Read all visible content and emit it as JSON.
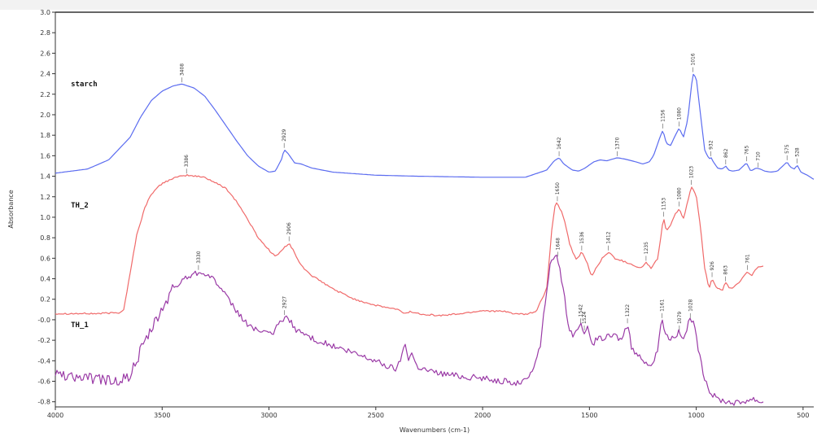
{
  "chart_data": {
    "type": "line",
    "xlabel": "Wavenumbers (cm-1)",
    "ylabel": "Absorbance",
    "xlim": [
      4000,
      450
    ],
    "ylim": [
      -0.85,
      3.0
    ],
    "x_reversed": true,
    "grid": false,
    "x_ticks": [
      4000,
      3500,
      3000,
      2500,
      2000,
      1500,
      1000,
      500
    ],
    "y_ticks": [
      -0.8,
      -0.6,
      -0.4,
      -0.2,
      0.0,
      0.2,
      0.4,
      0.6,
      0.8,
      1.0,
      1.2,
      1.4,
      1.6,
      1.8,
      2.0,
      2.2,
      2.4,
      2.6,
      2.8,
      3.0
    ],
    "x_tick_labels": [
      "4000",
      "3500",
      "3000",
      "2500",
      "2000",
      "1500",
      "1000",
      "500"
    ],
    "y_tick_labels": [
      "-0.8",
      "-0.6",
      "-0.4",
      "-0.2",
      "-0.0",
      "0.2",
      "0.4",
      "0.6",
      "0.8",
      "1.0",
      "1.2",
      "1.4",
      "1.6",
      "1.8",
      "2.0",
      "2.2",
      "2.4",
      "2.6",
      "2.8",
      "3.0"
    ],
    "series": [
      {
        "name": "starch",
        "color": "#5b6cf0",
        "noise": 0.0,
        "points": [
          [
            4000,
            1.43
          ],
          [
            3850,
            1.47
          ],
          [
            3750,
            1.56
          ],
          [
            3650,
            1.78
          ],
          [
            3600,
            1.98
          ],
          [
            3550,
            2.14
          ],
          [
            3500,
            2.23
          ],
          [
            3450,
            2.28
          ],
          [
            3408,
            2.3
          ],
          [
            3350,
            2.26
          ],
          [
            3300,
            2.18
          ],
          [
            3250,
            2.04
          ],
          [
            3200,
            1.89
          ],
          [
            3150,
            1.74
          ],
          [
            3100,
            1.6
          ],
          [
            3050,
            1.5
          ],
          [
            3000,
            1.44
          ],
          [
            2970,
            1.45
          ],
          [
            2940,
            1.57
          ],
          [
            2929,
            1.66
          ],
          [
            2910,
            1.62
          ],
          [
            2880,
            1.53
          ],
          [
            2850,
            1.52
          ],
          [
            2800,
            1.48
          ],
          [
            2700,
            1.44
          ],
          [
            2500,
            1.41
          ],
          [
            2300,
            1.4
          ],
          [
            2000,
            1.39
          ],
          [
            1800,
            1.39
          ],
          [
            1700,
            1.46
          ],
          [
            1665,
            1.55
          ],
          [
            1642,
            1.58
          ],
          [
            1620,
            1.52
          ],
          [
            1580,
            1.46
          ],
          [
            1550,
            1.45
          ],
          [
            1520,
            1.48
          ],
          [
            1480,
            1.54
          ],
          [
            1450,
            1.56
          ],
          [
            1420,
            1.55
          ],
          [
            1370,
            1.58
          ],
          [
            1340,
            1.57
          ],
          [
            1300,
            1.55
          ],
          [
            1250,
            1.52
          ],
          [
            1220,
            1.54
          ],
          [
            1200,
            1.6
          ],
          [
            1170,
            1.78
          ],
          [
            1156,
            1.85
          ],
          [
            1140,
            1.72
          ],
          [
            1120,
            1.7
          ],
          [
            1100,
            1.79
          ],
          [
            1080,
            1.87
          ],
          [
            1060,
            1.78
          ],
          [
            1040,
            1.95
          ],
          [
            1016,
            2.4
          ],
          [
            1000,
            2.36
          ],
          [
            980,
            2.0
          ],
          [
            960,
            1.65
          ],
          [
            940,
            1.57
          ],
          [
            930,
            1.58
          ],
          [
            920,
            1.54
          ],
          [
            900,
            1.48
          ],
          [
            880,
            1.47
          ],
          [
            860,
            1.5
          ],
          [
            850,
            1.46
          ],
          [
            830,
            1.45
          ],
          [
            800,
            1.46
          ],
          [
            780,
            1.5
          ],
          [
            765,
            1.53
          ],
          [
            745,
            1.45
          ],
          [
            720,
            1.48
          ],
          [
            700,
            1.47
          ],
          [
            680,
            1.45
          ],
          [
            650,
            1.44
          ],
          [
            620,
            1.45
          ],
          [
            600,
            1.49
          ],
          [
            575,
            1.54
          ],
          [
            560,
            1.49
          ],
          [
            540,
            1.47
          ],
          [
            528,
            1.51
          ],
          [
            510,
            1.44
          ],
          [
            480,
            1.41
          ],
          [
            450,
            1.37
          ]
        ]
      },
      {
        "name": "TH_2",
        "color": "#f06a6a",
        "noise": 0.008,
        "points": [
          [
            4000,
            0.06
          ],
          [
            3800,
            0.06
          ],
          [
            3700,
            0.07
          ],
          [
            3680,
            0.1
          ],
          [
            3650,
            0.45
          ],
          [
            3620,
            0.82
          ],
          [
            3580,
            1.1
          ],
          [
            3550,
            1.23
          ],
          [
            3500,
            1.33
          ],
          [
            3450,
            1.38
          ],
          [
            3386,
            1.41
          ],
          [
            3300,
            1.39
          ],
          [
            3200,
            1.28
          ],
          [
            3150,
            1.15
          ],
          [
            3100,
            0.98
          ],
          [
            3050,
            0.8
          ],
          [
            3000,
            0.68
          ],
          [
            2970,
            0.62
          ],
          [
            2950,
            0.65
          ],
          [
            2930,
            0.7
          ],
          [
            2906,
            0.75
          ],
          [
            2880,
            0.65
          ],
          [
            2850,
            0.53
          ],
          [
            2800,
            0.43
          ],
          [
            2700,
            0.3
          ],
          [
            2600,
            0.2
          ],
          [
            2500,
            0.14
          ],
          [
            2400,
            0.1
          ],
          [
            2360,
            0.06
          ],
          [
            2340,
            0.08
          ],
          [
            2300,
            0.06
          ],
          [
            2200,
            0.04
          ],
          [
            2100,
            0.06
          ],
          [
            2000,
            0.09
          ],
          [
            1900,
            0.08
          ],
          [
            1850,
            0.06
          ],
          [
            1800,
            0.05
          ],
          [
            1750,
            0.08
          ],
          [
            1700,
            0.3
          ],
          [
            1675,
            0.9
          ],
          [
            1660,
            1.12
          ],
          [
            1650,
            1.14
          ],
          [
            1620,
            1.0
          ],
          [
            1590,
            0.72
          ],
          [
            1560,
            0.58
          ],
          [
            1536,
            0.66
          ],
          [
            1510,
            0.55
          ],
          [
            1490,
            0.42
          ],
          [
            1470,
            0.5
          ],
          [
            1440,
            0.6
          ],
          [
            1412,
            0.66
          ],
          [
            1380,
            0.6
          ],
          [
            1340,
            0.57
          ],
          [
            1300,
            0.54
          ],
          [
            1260,
            0.5
          ],
          [
            1235,
            0.56
          ],
          [
            1210,
            0.5
          ],
          [
            1180,
            0.6
          ],
          [
            1160,
            0.9
          ],
          [
            1153,
            0.99
          ],
          [
            1140,
            0.87
          ],
          [
            1120,
            0.92
          ],
          [
            1100,
            1.02
          ],
          [
            1080,
            1.09
          ],
          [
            1060,
            0.98
          ],
          [
            1040,
            1.15
          ],
          [
            1023,
            1.3
          ],
          [
            1000,
            1.22
          ],
          [
            980,
            0.9
          ],
          [
            960,
            0.5
          ],
          [
            940,
            0.3
          ],
          [
            926,
            0.4
          ],
          [
            910,
            0.32
          ],
          [
            880,
            0.28
          ],
          [
            863,
            0.36
          ],
          [
            840,
            0.3
          ],
          [
            800,
            0.36
          ],
          [
            780,
            0.42
          ],
          [
            761,
            0.47
          ],
          [
            740,
            0.43
          ],
          [
            720,
            0.5
          ],
          [
            700,
            0.52
          ],
          [
            680,
            0.53
          ]
        ]
      },
      {
        "name": "TH_1",
        "color": "#9a3aa6",
        "noise": 0.03,
        "points": [
          [
            4000,
            -0.52
          ],
          [
            3900,
            -0.56
          ],
          [
            3800,
            -0.58
          ],
          [
            3700,
            -0.6
          ],
          [
            3650,
            -0.55
          ],
          [
            3620,
            -0.4
          ],
          [
            3600,
            -0.3
          ],
          [
            3550,
            -0.1
          ],
          [
            3500,
            0.1
          ],
          [
            3450,
            0.3
          ],
          [
            3400,
            0.4
          ],
          [
            3350,
            0.45
          ],
          [
            3320,
            0.47
          ],
          [
            3300,
            0.46
          ],
          [
            3250,
            0.38
          ],
          [
            3200,
            0.22
          ],
          [
            3150,
            0.08
          ],
          [
            3100,
            -0.05
          ],
          [
            3050,
            -0.1
          ],
          [
            3000,
            -0.15
          ],
          [
            2970,
            -0.1
          ],
          [
            2950,
            -0.03
          ],
          [
            2927,
            0.03
          ],
          [
            2900,
            -0.02
          ],
          [
            2870,
            -0.1
          ],
          [
            2800,
            -0.18
          ],
          [
            2700,
            -0.26
          ],
          [
            2600,
            -0.33
          ],
          [
            2500,
            -0.4
          ],
          [
            2450,
            -0.45
          ],
          [
            2400,
            -0.48
          ],
          [
            2380,
            -0.35
          ],
          [
            2360,
            -0.22
          ],
          [
            2350,
            -0.38
          ],
          [
            2330,
            -0.32
          ],
          [
            2310,
            -0.45
          ],
          [
            2250,
            -0.5
          ],
          [
            2200,
            -0.52
          ],
          [
            2100,
            -0.55
          ],
          [
            2000,
            -0.57
          ],
          [
            1900,
            -0.6
          ],
          [
            1850,
            -0.62
          ],
          [
            1800,
            -0.6
          ],
          [
            1760,
            -0.45
          ],
          [
            1730,
            -0.25
          ],
          [
            1700,
            0.3
          ],
          [
            1680,
            0.58
          ],
          [
            1665,
            0.62
          ],
          [
            1648,
            0.6
          ],
          [
            1620,
            0.28
          ],
          [
            1600,
            -0.05
          ],
          [
            1580,
            -0.15
          ],
          [
            1560,
            -0.08
          ],
          [
            1542,
            -0.05
          ],
          [
            1524,
            -0.12
          ],
          [
            1510,
            -0.08
          ],
          [
            1490,
            -0.25
          ],
          [
            1470,
            -0.2
          ],
          [
            1440,
            -0.18
          ],
          [
            1400,
            -0.16
          ],
          [
            1380,
            -0.15
          ],
          [
            1350,
            -0.2
          ],
          [
            1335,
            -0.1
          ],
          [
            1322,
            -0.05
          ],
          [
            1300,
            -0.3
          ],
          [
            1270,
            -0.35
          ],
          [
            1240,
            -0.4
          ],
          [
            1210,
            -0.45
          ],
          [
            1180,
            -0.3
          ],
          [
            1161,
            0.0
          ],
          [
            1140,
            -0.15
          ],
          [
            1120,
            -0.18
          ],
          [
            1100,
            -0.15
          ],
          [
            1079,
            -0.12
          ],
          [
            1060,
            -0.2
          ],
          [
            1040,
            -0.05
          ],
          [
            1028,
            0.0
          ],
          [
            1010,
            -0.05
          ],
          [
            990,
            -0.3
          ],
          [
            960,
            -0.6
          ],
          [
            930,
            -0.72
          ],
          [
            900,
            -0.77
          ],
          [
            850,
            -0.8
          ],
          [
            800,
            -0.81
          ],
          [
            760,
            -0.78
          ],
          [
            730,
            -0.77
          ],
          [
            700,
            -0.8
          ],
          [
            680,
            -0.79
          ]
        ]
      }
    ],
    "series_labels": [
      {
        "text": "starch",
        "x": 3950,
        "y": 2.3
      },
      {
        "text": "TH_2",
        "x": 3950,
        "y": 1.12
      },
      {
        "text": "TH_1",
        "x": 3950,
        "y": -0.05
      }
    ],
    "peak_labels": [
      {
        "text": "3408",
        "x": 3408,
        "y": 2.3
      },
      {
        "text": "2929",
        "x": 2929,
        "y": 1.66
      },
      {
        "text": "1642",
        "x": 1642,
        "y": 1.58
      },
      {
        "text": "1370",
        "x": 1370,
        "y": 1.58
      },
      {
        "text": "1156",
        "x": 1156,
        "y": 1.85
      },
      {
        "text": "1080",
        "x": 1080,
        "y": 1.87
      },
      {
        "text": "1016",
        "x": 1016,
        "y": 2.4
      },
      {
        "text": "932",
        "x": 932,
        "y": 1.58
      },
      {
        "text": "862",
        "x": 862,
        "y": 1.5
      },
      {
        "text": "765",
        "x": 765,
        "y": 1.53
      },
      {
        "text": "710",
        "x": 710,
        "y": 1.47
      },
      {
        "text": "575",
        "x": 575,
        "y": 1.54
      },
      {
        "text": "528",
        "x": 528,
        "y": 1.51
      },
      {
        "text": "3386",
        "x": 3386,
        "y": 1.41
      },
      {
        "text": "2906",
        "x": 2906,
        "y": 0.75
      },
      {
        "text": "1650",
        "x": 1650,
        "y": 1.14
      },
      {
        "text": "1536",
        "x": 1536,
        "y": 0.66
      },
      {
        "text": "1412",
        "x": 1412,
        "y": 0.66
      },
      {
        "text": "1235",
        "x": 1235,
        "y": 0.56
      },
      {
        "text": "1153",
        "x": 1153,
        "y": 0.99
      },
      {
        "text": "1080",
        "x": 1080,
        "y": 1.09
      },
      {
        "text": "1023",
        "x": 1023,
        "y": 1.3
      },
      {
        "text": "926",
        "x": 926,
        "y": 0.4
      },
      {
        "text": "863",
        "x": 863,
        "y": 0.36
      },
      {
        "text": "761",
        "x": 761,
        "y": 0.47
      },
      {
        "text": "3330",
        "x": 3330,
        "y": 0.47
      },
      {
        "text": "2927",
        "x": 2927,
        "y": 0.03
      },
      {
        "text": "1648",
        "x": 1648,
        "y": 0.6
      },
      {
        "text": "1542",
        "x": 1542,
        "y": -0.05
      },
      {
        "text": "1524",
        "x": 1524,
        "y": -0.12
      },
      {
        "text": "1322",
        "x": 1322,
        "y": -0.05
      },
      {
        "text": "1161",
        "x": 1161,
        "y": 0.0
      },
      {
        "text": "1079",
        "x": 1079,
        "y": -0.12
      },
      {
        "text": "1028",
        "x": 1028,
        "y": 0.0
      }
    ]
  }
}
